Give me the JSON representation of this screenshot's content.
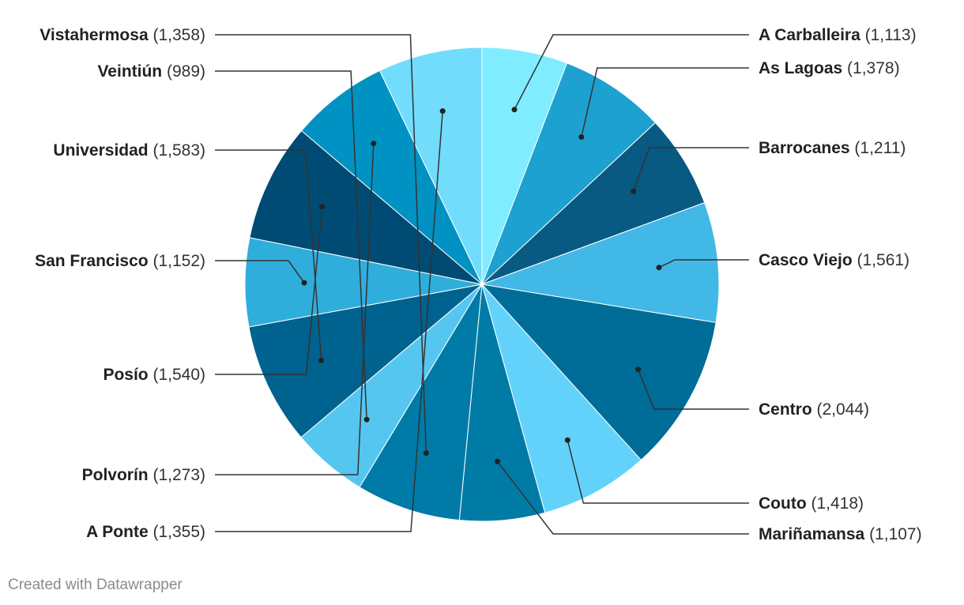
{
  "chart_data": {
    "type": "pie",
    "categories": [
      "A Carballeira",
      "As Lagoas",
      "Barrocanes",
      "Casco Viejo",
      "Centro",
      "Couto",
      "Mariñamansa",
      "A Ponte",
      "Polvorín",
      "Posío",
      "San Francisco",
      "Universidad",
      "Veintiún",
      "Vistahermosa"
    ],
    "values": [
      1113,
      1378,
      1211,
      1561,
      2044,
      1418,
      1107,
      1355,
      1273,
      1540,
      1152,
      1583,
      989,
      1358
    ],
    "value_labels": [
      "1,113",
      "1,378",
      "1,211",
      "1,561",
      "2,044",
      "1,418",
      "1,107",
      "1,355",
      "1,273",
      "1,540",
      "1,152",
      "1,583",
      "989",
      "1,358"
    ],
    "colors": [
      "#80ecff",
      "#1da1d0",
      "#085a82",
      "#42b8e6",
      "#006c98",
      "#62d2fa",
      "#007ba6",
      "#72dcfc",
      "#0092c2",
      "#004b73",
      "#2faedc",
      "#00628e",
      "#55c6f0",
      "#007ba8"
    ],
    "slice_order": [
      0,
      1,
      2,
      3,
      4,
      5,
      6,
      13,
      12,
      11,
      10,
      9,
      8,
      7
    ],
    "title": "",
    "legend": "none"
  },
  "credit": "Created with Datawrapper"
}
